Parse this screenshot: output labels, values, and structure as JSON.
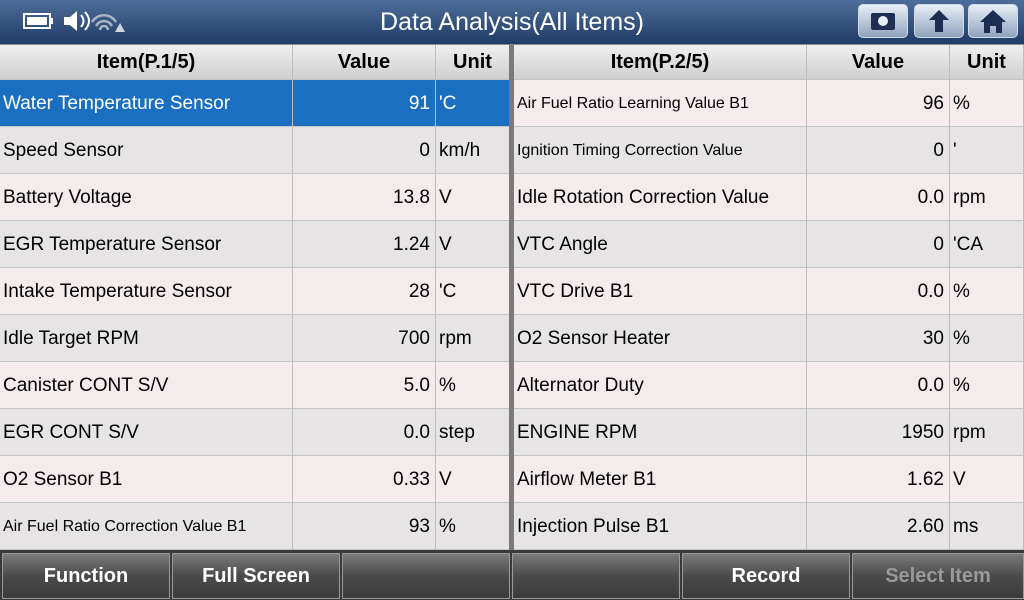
{
  "header": {
    "title": "Data Analysis(All Items)"
  },
  "tables": [
    {
      "columns": [
        "Item(P.1/5)",
        "Value",
        "Unit"
      ],
      "rows": [
        [
          "Water Temperature Sensor",
          "91",
          "'C"
        ],
        [
          "Speed Sensor",
          "0",
          "km/h"
        ],
        [
          "Battery Voltage",
          "13.8",
          "V"
        ],
        [
          "EGR Temperature Sensor",
          "1.24",
          "V"
        ],
        [
          "Intake Temperature Sensor",
          "28",
          "'C"
        ],
        [
          "Idle Target RPM",
          "700",
          "rpm"
        ],
        [
          "Canister CONT S/V",
          "5.0",
          "%"
        ],
        [
          "EGR CONT S/V",
          "0.0",
          "step"
        ],
        [
          "O2 Sensor B1",
          "0.33",
          "V"
        ],
        [
          "Air Fuel Ratio Correction Value B1",
          "93",
          "%"
        ]
      ]
    },
    {
      "columns": [
        "Item(P.2/5)",
        "Value",
        "Unit"
      ],
      "rows": [
        [
          "Air Fuel Ratio Learning Value B1",
          "96",
          "%"
        ],
        [
          "Ignition Timing Correction Value",
          "0",
          "'"
        ],
        [
          "Idle Rotation Correction Value",
          "0.0",
          "rpm"
        ],
        [
          "VTC Angle",
          "0",
          "'CA"
        ],
        [
          "VTC Drive B1",
          "0.0",
          "%"
        ],
        [
          "O2 Sensor Heater",
          "30",
          "%"
        ],
        [
          "Alternator Duty",
          "0.0",
          "%"
        ],
        [
          "ENGINE RPM",
          "1950",
          "rpm"
        ],
        [
          "Airflow Meter B1",
          "1.62",
          "V"
        ],
        [
          "Injection Pulse B1",
          "2.60",
          "ms"
        ]
      ]
    }
  ],
  "buttons": [
    "Function",
    "Full Screen",
    "Record",
    "Select Item"
  ]
}
